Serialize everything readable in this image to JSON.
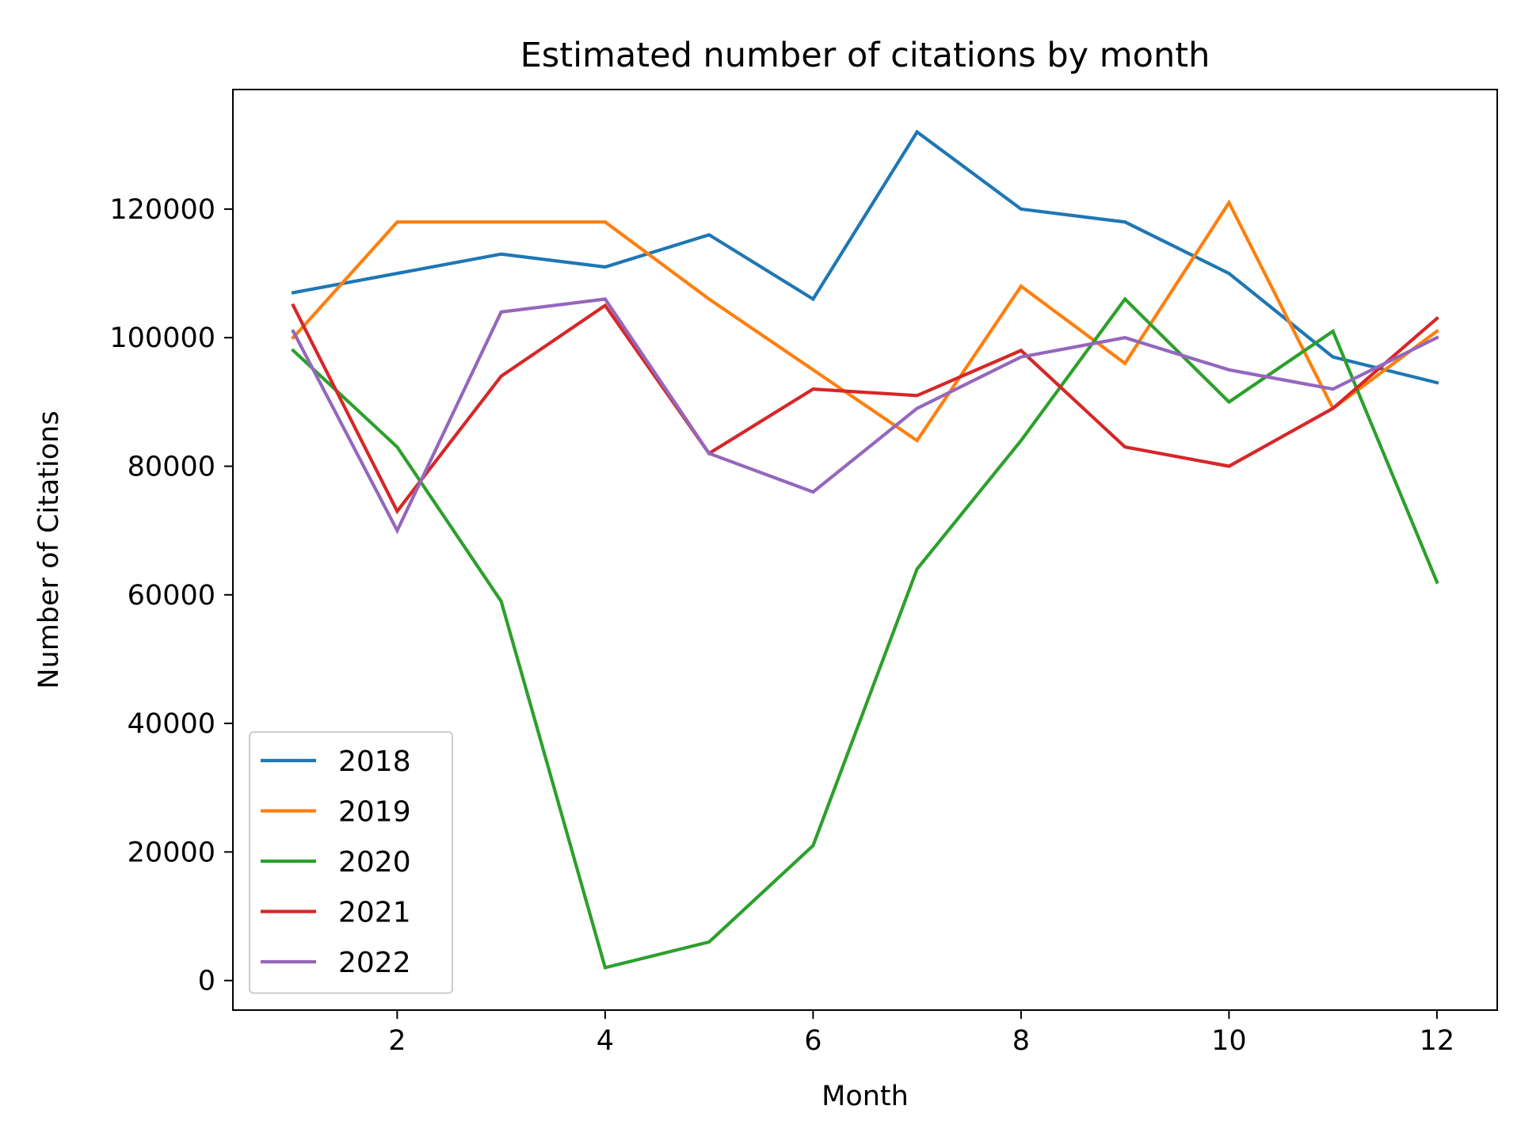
{
  "chart_data": {
    "type": "line",
    "title": "Estimated number of citations by month",
    "xlabel": "Month",
    "ylabel": "Number of Citations",
    "x": [
      1,
      2,
      3,
      4,
      5,
      6,
      7,
      8,
      9,
      10,
      11,
      12
    ],
    "xlim": [
      0.42,
      12.58
    ],
    "ylim": [
      -4600,
      138600
    ],
    "xticks": [
      2,
      4,
      6,
      8,
      10,
      12
    ],
    "yticks": [
      0,
      20000,
      40000,
      60000,
      80000,
      100000,
      120000
    ],
    "grid": false,
    "legend_position": "lower-left",
    "series": [
      {
        "name": "2018",
        "color": "#1f77b4",
        "values": [
          107000,
          110000,
          113000,
          111000,
          116000,
          106000,
          132000,
          120000,
          118000,
          110000,
          97000,
          93000
        ]
      },
      {
        "name": "2019",
        "color": "#ff7f0e",
        "values": [
          100000,
          118000,
          118000,
          118000,
          106000,
          95000,
          84000,
          108000,
          96000,
          121000,
          89000,
          101000
        ]
      },
      {
        "name": "2020",
        "color": "#2ca02c",
        "values": [
          98000,
          83000,
          59000,
          2000,
          6000,
          21000,
          64000,
          84000,
          106000,
          90000,
          101000,
          62000
        ]
      },
      {
        "name": "2021",
        "color": "#d62728",
        "values": [
          105000,
          73000,
          94000,
          105000,
          82000,
          92000,
          91000,
          98000,
          83000,
          80000,
          89000,
          103000
        ]
      },
      {
        "name": "2022",
        "color": "#9467bd",
        "values": [
          101000,
          70000,
          104000,
          106000,
          82000,
          76000,
          89000,
          97000,
          100000,
          95000,
          92000,
          100000
        ]
      }
    ]
  }
}
